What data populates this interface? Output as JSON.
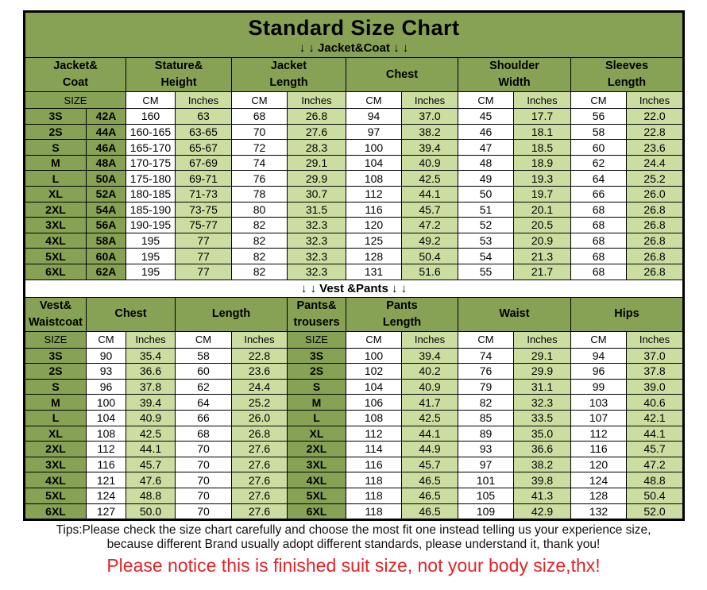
{
  "colors": {
    "header_green": "#87a254",
    "light_green": "#ccdda1",
    "cell_white": "#ffffff",
    "border_black": "#000000",
    "notice_red": "#e02428"
  },
  "chart_data": [
    {
      "type": "table",
      "title": "Standard Size Chart",
      "subtitle_arrows": "↓ ↓  Jacket&Coat ↓ ↓",
      "section": "Jacket&Coat",
      "column_groups": [
        {
          "label": "Jacket&\nCoat",
          "span": 2
        },
        {
          "label": "Stature&\nHeight",
          "span": 2
        },
        {
          "label": "Jacket\nLength",
          "span": 2
        },
        {
          "label": "Chest",
          "span": 2
        },
        {
          "label": "Shoulder\nWidth",
          "span": 2
        },
        {
          "label": "Sleeves\nLength",
          "span": 2
        }
      ],
      "units_row": [
        "SIZE",
        "CM",
        "Inches",
        "CM",
        "Inches",
        "CM",
        "Inches",
        "CM",
        "Inches",
        "CM",
        "Inches"
      ],
      "rows": [
        [
          "3S",
          "42A",
          "160",
          "63",
          "68",
          "26.8",
          "94",
          "37.0",
          "45",
          "17.7",
          "56",
          "22.0"
        ],
        [
          "2S",
          "44A",
          "160-165",
          "63-65",
          "70",
          "27.6",
          "97",
          "38.2",
          "46",
          "18.1",
          "58",
          "22.8"
        ],
        [
          "S",
          "46A",
          "165-170",
          "65-67",
          "72",
          "28.3",
          "100",
          "39.4",
          "47",
          "18.5",
          "60",
          "23.6"
        ],
        [
          "M",
          "48A",
          "170-175",
          "67-69",
          "74",
          "29.1",
          "104",
          "40.9",
          "48",
          "18.9",
          "62",
          "24.4"
        ],
        [
          "L",
          "50A",
          "175-180",
          "69-71",
          "76",
          "29.9",
          "108",
          "42.5",
          "49",
          "19.3",
          "64",
          "25.2"
        ],
        [
          "XL",
          "52A",
          "180-185",
          "71-73",
          "78",
          "30.7",
          "112",
          "44.1",
          "50",
          "19.7",
          "66",
          "26.0"
        ],
        [
          "2XL",
          "54A",
          "185-190",
          "73-75",
          "80",
          "31.5",
          "116",
          "45.7",
          "51",
          "20.1",
          "68",
          "26.8"
        ],
        [
          "3XL",
          "56A",
          "190-195",
          "75-77",
          "82",
          "32.3",
          "120",
          "47.2",
          "52",
          "20.5",
          "68",
          "26.8"
        ],
        [
          "4XL",
          "58A",
          "195",
          "77",
          "82",
          "32.3",
          "125",
          "49.2",
          "53",
          "20.9",
          "68",
          "26.8"
        ],
        [
          "5XL",
          "60A",
          "195",
          "77",
          "82",
          "32.3",
          "128",
          "50.4",
          "54",
          "21.3",
          "68",
          "26.8"
        ],
        [
          "6XL",
          "62A",
          "195",
          "77",
          "82",
          "32.3",
          "131",
          "51.6",
          "55",
          "21.7",
          "68",
          "26.8"
        ]
      ]
    },
    {
      "type": "table",
      "section": "Vest &Pants",
      "separator_label": "↓ ↓  Vest &Pants ↓ ↓",
      "column_groups": [
        {
          "label": "Vest&\nWaistcoat",
          "span": 1
        },
        {
          "label": "Chest",
          "span": 2
        },
        {
          "label": "Length",
          "span": 2
        },
        {
          "label": "Pants&\ntrousers",
          "span": 1
        },
        {
          "label": "Pants\nLength",
          "span": 2
        },
        {
          "label": "Waist",
          "span": 2
        },
        {
          "label": "Hips",
          "span": 2
        }
      ],
      "units_row": [
        "SIZE",
        "CM",
        "Inches",
        "CM",
        "Inches",
        "SIZE",
        "CM",
        "Inches",
        "CM",
        "Inches",
        "CM",
        "Inches"
      ],
      "rows": [
        [
          "3S",
          "90",
          "35.4",
          "58",
          "22.8",
          "3S",
          "100",
          "39.4",
          "74",
          "29.1",
          "94",
          "37.0"
        ],
        [
          "2S",
          "93",
          "36.6",
          "60",
          "23.6",
          "2S",
          "102",
          "40.2",
          "76",
          "29.9",
          "96",
          "37.8"
        ],
        [
          "S",
          "96",
          "37.8",
          "62",
          "24.4",
          "S",
          "104",
          "40.9",
          "79",
          "31.1",
          "99",
          "39.0"
        ],
        [
          "M",
          "100",
          "39.4",
          "64",
          "25.2",
          "M",
          "106",
          "41.7",
          "82",
          "32.3",
          "103",
          "40.6"
        ],
        [
          "L",
          "104",
          "40.9",
          "66",
          "26.0",
          "L",
          "108",
          "42.5",
          "85",
          "33.5",
          "107",
          "42.1"
        ],
        [
          "XL",
          "108",
          "42.5",
          "68",
          "26.8",
          "XL",
          "112",
          "44.1",
          "89",
          "35.0",
          "112",
          "44.1"
        ],
        [
          "2XL",
          "112",
          "44.1",
          "70",
          "27.6",
          "2XL",
          "114",
          "44.9",
          "93",
          "36.6",
          "116",
          "45.7"
        ],
        [
          "3XL",
          "116",
          "45.7",
          "70",
          "27.6",
          "3XL",
          "116",
          "45.7",
          "97",
          "38.2",
          "120",
          "47.2"
        ],
        [
          "4XL",
          "121",
          "47.6",
          "70",
          "27.6",
          "4XL",
          "118",
          "46.5",
          "101",
          "39.8",
          "124",
          "48.8"
        ],
        [
          "5XL",
          "124",
          "48.8",
          "70",
          "27.6",
          "5XL",
          "118",
          "46.5",
          "105",
          "41.3",
          "128",
          "50.4"
        ],
        [
          "6XL",
          "127",
          "50.0",
          "70",
          "27.6",
          "6XL",
          "118",
          "46.5",
          "109",
          "42.9",
          "132",
          "52.0"
        ]
      ]
    }
  ],
  "footer": {
    "tips_line1": "Tips:Please check the size chart carefully and choose the most fit one instead telling us your experience size,",
    "tips_line2": "because different Brand usually adopt different standards, please understand it, thank you!",
    "notice": "Please notice this is finished suit size, not your body size,thx!"
  }
}
